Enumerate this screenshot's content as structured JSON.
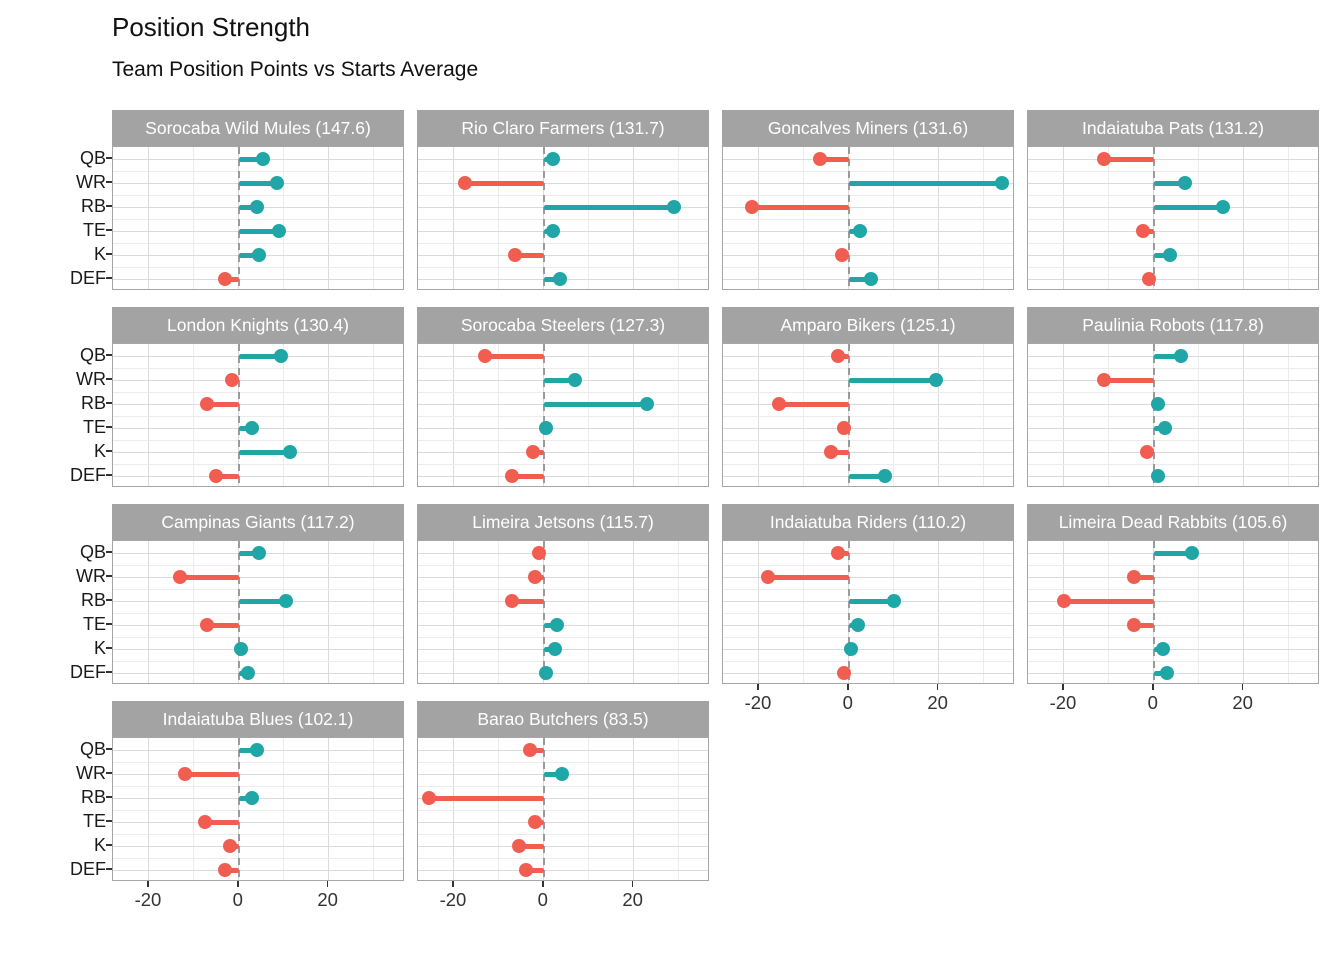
{
  "title": "Position Strength",
  "subtitle": "Team Position Points vs Starts Average",
  "chart_data": {
    "type": "bar",
    "variant": "faceted-lollipop",
    "description": "Small-multiples lollipop chart: difference of team position points vs starts average, one panel per team, positive teal / negative red",
    "categories": [
      "QB",
      "WR",
      "RB",
      "TE",
      "K",
      "DEF"
    ],
    "x_ticks": [
      -20,
      0,
      20
    ],
    "x_minor_ticks": [
      -10,
      10,
      30
    ],
    "xlim": [
      -28,
      37
    ],
    "grid": true,
    "zero_reference_line": "dashed",
    "colors": {
      "positive": "#20A6A6",
      "negative": "#F25D52",
      "strip_bg": "#A3A3A3",
      "strip_text": "#FFFFFF",
      "panel_border": "#A6A6A6",
      "grid_major": "#DBDBDB",
      "grid_minor": "#ECECEC",
      "zero_line": "#9B9B9B"
    },
    "facets": [
      {
        "team": "Sorocaba Wild Mules",
        "total": 147.6,
        "label": "Sorocaba Wild Mules (147.6)",
        "values": [
          5.5,
          8.5,
          4,
          9,
          4.5,
          -3
        ]
      },
      {
        "team": "Rio Claro Farmers",
        "total": 131.7,
        "label": "Rio Claro Farmers (131.7)",
        "values": [
          2,
          -17.5,
          29,
          2,
          -6.5,
          3.5
        ]
      },
      {
        "team": "Goncalves Miners",
        "total": 131.6,
        "label": "Goncalves Miners (131.6)",
        "values": [
          -6.5,
          34,
          -21.5,
          2.5,
          -1.5,
          5
        ]
      },
      {
        "team": "Indaiatuba Pats",
        "total": 131.2,
        "label": "Indaiatuba Pats (131.2)",
        "values": [
          -11,
          7,
          15.5,
          -2.5,
          3.5,
          -1
        ]
      },
      {
        "team": "London Knights",
        "total": 130.4,
        "label": "London Knights (130.4)",
        "values": [
          9.5,
          -1.5,
          -7,
          3,
          11.5,
          -5
        ]
      },
      {
        "team": "Sorocaba Steelers",
        "total": 127.3,
        "label": "Sorocaba Steelers (127.3)",
        "values": [
          -13,
          7,
          23,
          0.5,
          -2.5,
          -7
        ]
      },
      {
        "team": "Amparo Bikers",
        "total": 125.1,
        "label": "Amparo Bikers (125.1)",
        "values": [
          -2.5,
          19.5,
          -15.5,
          -1,
          -4,
          8
        ]
      },
      {
        "team": "Paulinia Robots",
        "total": 117.8,
        "label": "Paulinia Robots (117.8)",
        "values": [
          6,
          -11,
          1,
          2.5,
          -1.5,
          1
        ]
      },
      {
        "team": "Campinas Giants",
        "total": 117.2,
        "label": "Campinas Giants (117.2)",
        "values": [
          4.5,
          -13,
          10.5,
          -7,
          0.5,
          2
        ]
      },
      {
        "team": "Limeira Jetsons",
        "total": 115.7,
        "label": "Limeira Jetsons (115.7)",
        "values": [
          -1,
          -2,
          -7,
          3,
          2.5,
          0.5
        ]
      },
      {
        "team": "Indaiatuba Riders",
        "total": 110.2,
        "label": "Indaiatuba Riders (110.2)",
        "values": [
          -2.5,
          -18,
          10,
          2,
          0.5,
          -1
        ]
      },
      {
        "team": "Limeira Dead Rabbits",
        "total": 105.6,
        "label": "Limeira Dead Rabbits (105.6)",
        "values": [
          8.5,
          -4.5,
          -20,
          -4.5,
          2,
          3
        ]
      },
      {
        "team": "Indaiatuba Blues",
        "total": 102.1,
        "label": "Indaiatuba Blues (102.1)",
        "values": [
          4,
          -12,
          3,
          -7.5,
          -2,
          -3
        ]
      },
      {
        "team": "Barao Butchers",
        "total": 83.5,
        "label": "Barao Butchers (83.5)",
        "values": [
          -3,
          4,
          -25.5,
          -2,
          -5.5,
          -4
        ]
      }
    ],
    "facets_with_x_axis": [
      10,
      11,
      12,
      13
    ],
    "facets_with_y_axis": [
      0,
      4,
      8,
      12
    ]
  }
}
